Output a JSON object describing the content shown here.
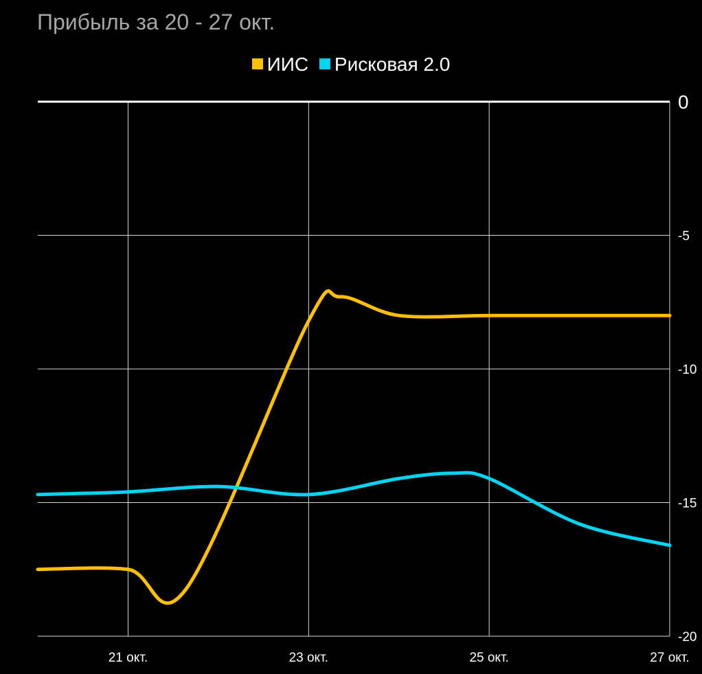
{
  "chart_data": {
    "type": "line",
    "title": "Прибыль за 20 - 27 окт.",
    "x": [
      0,
      1,
      2,
      3,
      4,
      5,
      6,
      7
    ],
    "x_tick_labels": [
      {
        "x": 1,
        "label": "21 окт."
      },
      {
        "x": 3,
        "label": "23 окт."
      },
      {
        "x": 5,
        "label": "25 окт."
      },
      {
        "x": 7,
        "label": "27 окт."
      }
    ],
    "xlim": [
      0,
      7
    ],
    "ylim": [
      -20,
      0
    ],
    "y_ticks": [
      0,
      -5,
      -10,
      -15,
      -20
    ],
    "y_tick_labels": [
      "0",
      "-5",
      "-10",
      "-15",
      "-20"
    ],
    "y_axis_side": "right",
    "grid": true,
    "legend": "top-center",
    "series": [
      {
        "name": "ИИС",
        "color": "#ffc000",
        "points": [
          [
            0,
            -17.5
          ],
          [
            1,
            -17.5
          ],
          [
            1.65,
            -18.2
          ],
          [
            3,
            -8.2
          ],
          [
            3.35,
            -7.3
          ],
          [
            4,
            -8
          ],
          [
            5,
            -8
          ],
          [
            6,
            -8
          ],
          [
            7,
            -8
          ]
        ]
      },
      {
        "name": "Рисковая 2.0",
        "color": "#00d4f0",
        "points": [
          [
            0,
            -14.7
          ],
          [
            1,
            -14.6
          ],
          [
            2,
            -14.4
          ],
          [
            3,
            -14.7
          ],
          [
            4,
            -14.1
          ],
          [
            4.6,
            -13.9
          ],
          [
            5,
            -14.1
          ],
          [
            6,
            -15.8
          ],
          [
            7,
            -16.6
          ]
        ]
      }
    ]
  }
}
